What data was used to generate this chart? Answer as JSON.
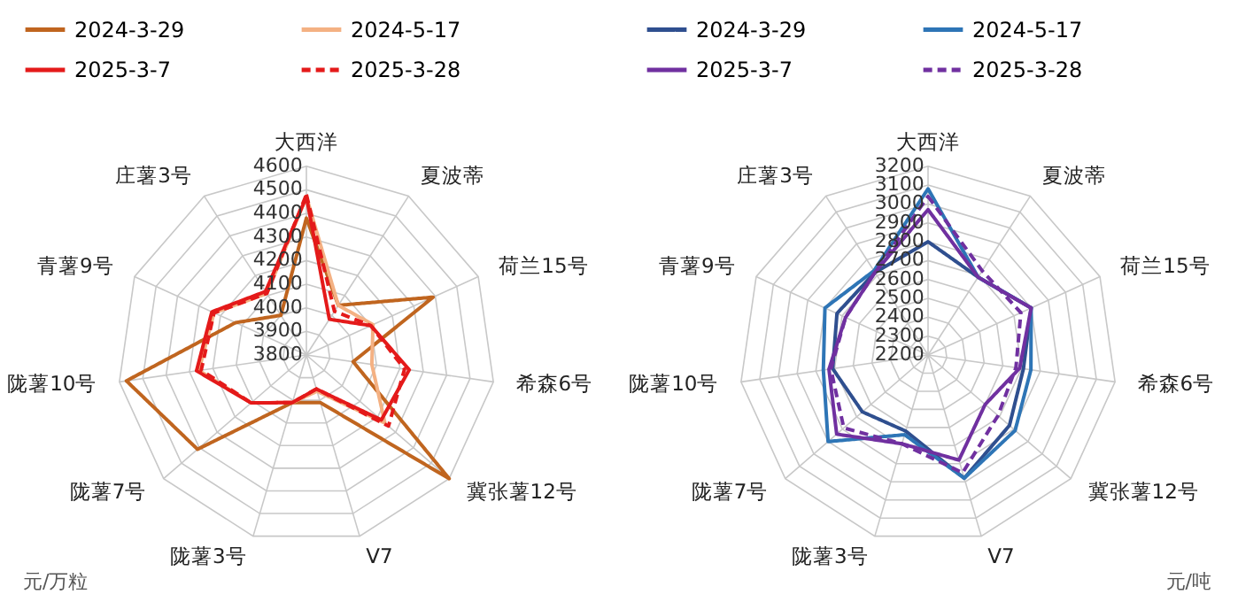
{
  "chart_data": [
    {
      "type": "radar",
      "categories": [
        "大西洋",
        "夏波蒂",
        "荷兰15号",
        "希森6号",
        "冀张薯12号",
        "V7",
        "陇薯3号",
        "陇薯7号",
        "陇薯10号",
        "青薯9号",
        "庄薯3号"
      ],
      "ylim": [
        3800,
        4600
      ],
      "yticks": [
        3800,
        3900,
        4000,
        4100,
        4200,
        4300,
        4400,
        4500,
        4600
      ],
      "ylabel": "元/万粒",
      "legend": "top",
      "grid": true,
      "marker": "none",
      "series": [
        {
          "name": "2024-3-29",
          "color": "#c0651f",
          "line_style": "solid",
          "values": [
            4380,
            4050,
            4390,
            4000,
            4600,
            4010,
            4010,
            4410,
            4570,
            4130,
            4000
          ]
        },
        {
          "name": "2024-5-17",
          "color": "#f4b183",
          "line_style": "solid",
          "values": [
            4470,
            4050,
            4110,
            4080,
            4240,
            3960,
            4010,
            4110,
            4260,
            4230,
            4110
          ]
        },
        {
          "name": "2025-3-7",
          "color": "#e41a1a",
          "line_style": "solid",
          "values": [
            4470,
            3980,
            4100,
            4240,
            4220,
            3950,
            4010,
            4110,
            4270,
            4240,
            4120
          ]
        },
        {
          "name": "2025-3-28",
          "color": "#e41a1a",
          "line_style": "dashed",
          "values": [
            4480,
            4020,
            4100,
            4220,
            4260,
            3950,
            4010,
            4110,
            4250,
            4230,
            4110
          ]
        }
      ]
    },
    {
      "type": "radar",
      "categories": [
        "大西洋",
        "夏波蒂",
        "荷兰15号",
        "希森6号",
        "冀张薯12号",
        "V7",
        "陇薯3号",
        "陇薯7号",
        "陇薯10号",
        "青薯9号",
        "庄薯3号"
      ],
      "ylim": [
        2200,
        3200
      ],
      "yticks": [
        2200,
        2300,
        2400,
        2500,
        2600,
        2700,
        2800,
        2900,
        3000,
        3100,
        3200
      ],
      "ylabel": "元/吨",
      "legend": "top",
      "grid": true,
      "marker": "none",
      "series": [
        {
          "name": "2024-3-29",
          "color": "#2f4f8f",
          "line_style": "solid",
          "values": [
            2800,
            2690,
            2800,
            2710,
            2770,
            2880,
            2620,
            2660,
            2710,
            2730,
            2720
          ]
        },
        {
          "name": "2024-5-17",
          "color": "#2e75b6",
          "line_style": "solid",
          "values": [
            3080,
            2690,
            2800,
            2750,
            2810,
            2880,
            2640,
            2900,
            2760,
            2800,
            2730
          ]
        },
        {
          "name": "2025-3-7",
          "color": "#7030a0",
          "line_style": "solid",
          "values": [
            2970,
            2690,
            2800,
            2690,
            2600,
            2780,
            2690,
            2840,
            2730,
            2680,
            2720
          ]
        },
        {
          "name": "2025-3-28",
          "color": "#7030a0",
          "line_style": "dashed",
          "values": [
            3040,
            2730,
            2740,
            2670,
            2690,
            2850,
            2690,
            2790,
            2720,
            2680,
            2720
          ]
        }
      ]
    }
  ]
}
